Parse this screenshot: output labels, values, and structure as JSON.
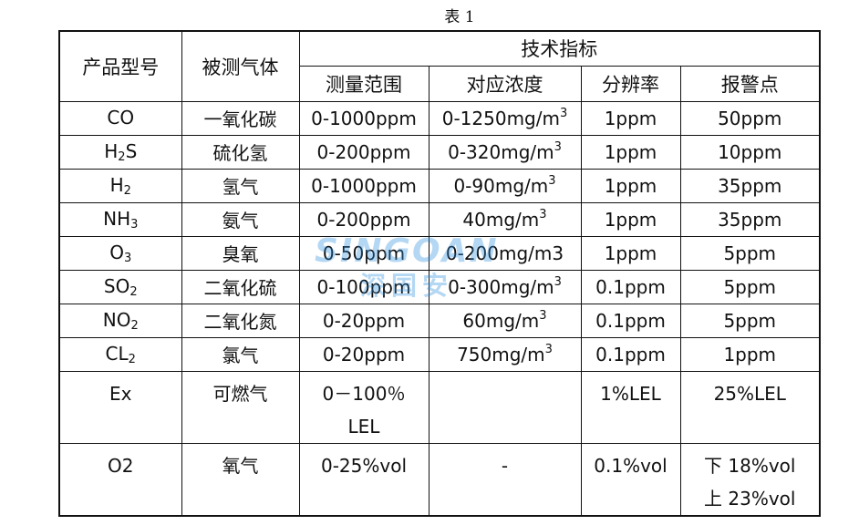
{
  "caption": "表 1",
  "watermark": {
    "latin": "SINGOAN",
    "cjk": "深国安"
  },
  "header": {
    "model": "产品型号",
    "gas": "被测气体",
    "tech": "技术指标",
    "range": "测量范围",
    "conc": "对应浓度",
    "resolution": "分辨率",
    "alarm": "报警点"
  },
  "rows": [
    {
      "model": "CO",
      "model_sub": "",
      "gas": "一氧化碳",
      "range": "0-1000ppm",
      "conc": "0-1250mg/m",
      "conc_sup": "3",
      "resolution": "1ppm",
      "alarm": "50ppm"
    },
    {
      "model": "H",
      "model_sub": "2",
      "model_tail": "S",
      "gas": "硫化氢",
      "range": "0-200ppm",
      "conc": "0-320mg/m",
      "conc_sup": "3",
      "resolution": "1ppm",
      "alarm": "10ppm"
    },
    {
      "model": "H",
      "model_sub": "2",
      "gas": "氢气",
      "range": "0-1000ppm",
      "conc": "0-90mg/m",
      "conc_sup": "3",
      "resolution": "1ppm",
      "alarm": "35ppm"
    },
    {
      "model": "NH",
      "model_sub": "3",
      "gas": "氨气",
      "range": "0-200ppm",
      "conc": "40mg/m",
      "conc_sup": "3",
      "resolution": "1ppm",
      "alarm": "35ppm"
    },
    {
      "model": "O",
      "model_sub": "3",
      "gas": "臭氧",
      "range": "0-50ppm",
      "conc": "0-200mg/m3",
      "conc_sup": "",
      "resolution": "1ppm",
      "alarm": "5ppm"
    },
    {
      "model": "SO",
      "model_sub": "2",
      "gas": "二氧化硫",
      "range": "0-100ppm",
      "conc": "0-300mg/m",
      "conc_sup": "3",
      "resolution": "0.1ppm",
      "alarm": "5ppm"
    },
    {
      "model": "NO",
      "model_sub": "2",
      "gas": "二氧化氮",
      "range": "0-20ppm",
      "conc": "60mg/m",
      "conc_sup": "3",
      "resolution": "0.1ppm",
      "alarm": "5ppm"
    },
    {
      "model": "CL",
      "model_sub": "2",
      "gas": "氯气",
      "range": "0-20ppm",
      "conc": "750mg/m",
      "conc_sup": "3",
      "resolution": "0.1ppm",
      "alarm": "1ppm"
    }
  ],
  "ex": {
    "model": "Ex",
    "gas": "可燃气",
    "range_line1": "0－100％",
    "range_line2": "LEL",
    "conc": "",
    "resolution": "1%LEL",
    "alarm": "25%LEL"
  },
  "o2": {
    "model": "O2",
    "gas": "氧气",
    "range": "0-25%vol",
    "conc": "-",
    "resolution": "0.1%vol",
    "alarm_line1": "下 18%vol",
    "alarm_line2": "上 23%vol"
  }
}
